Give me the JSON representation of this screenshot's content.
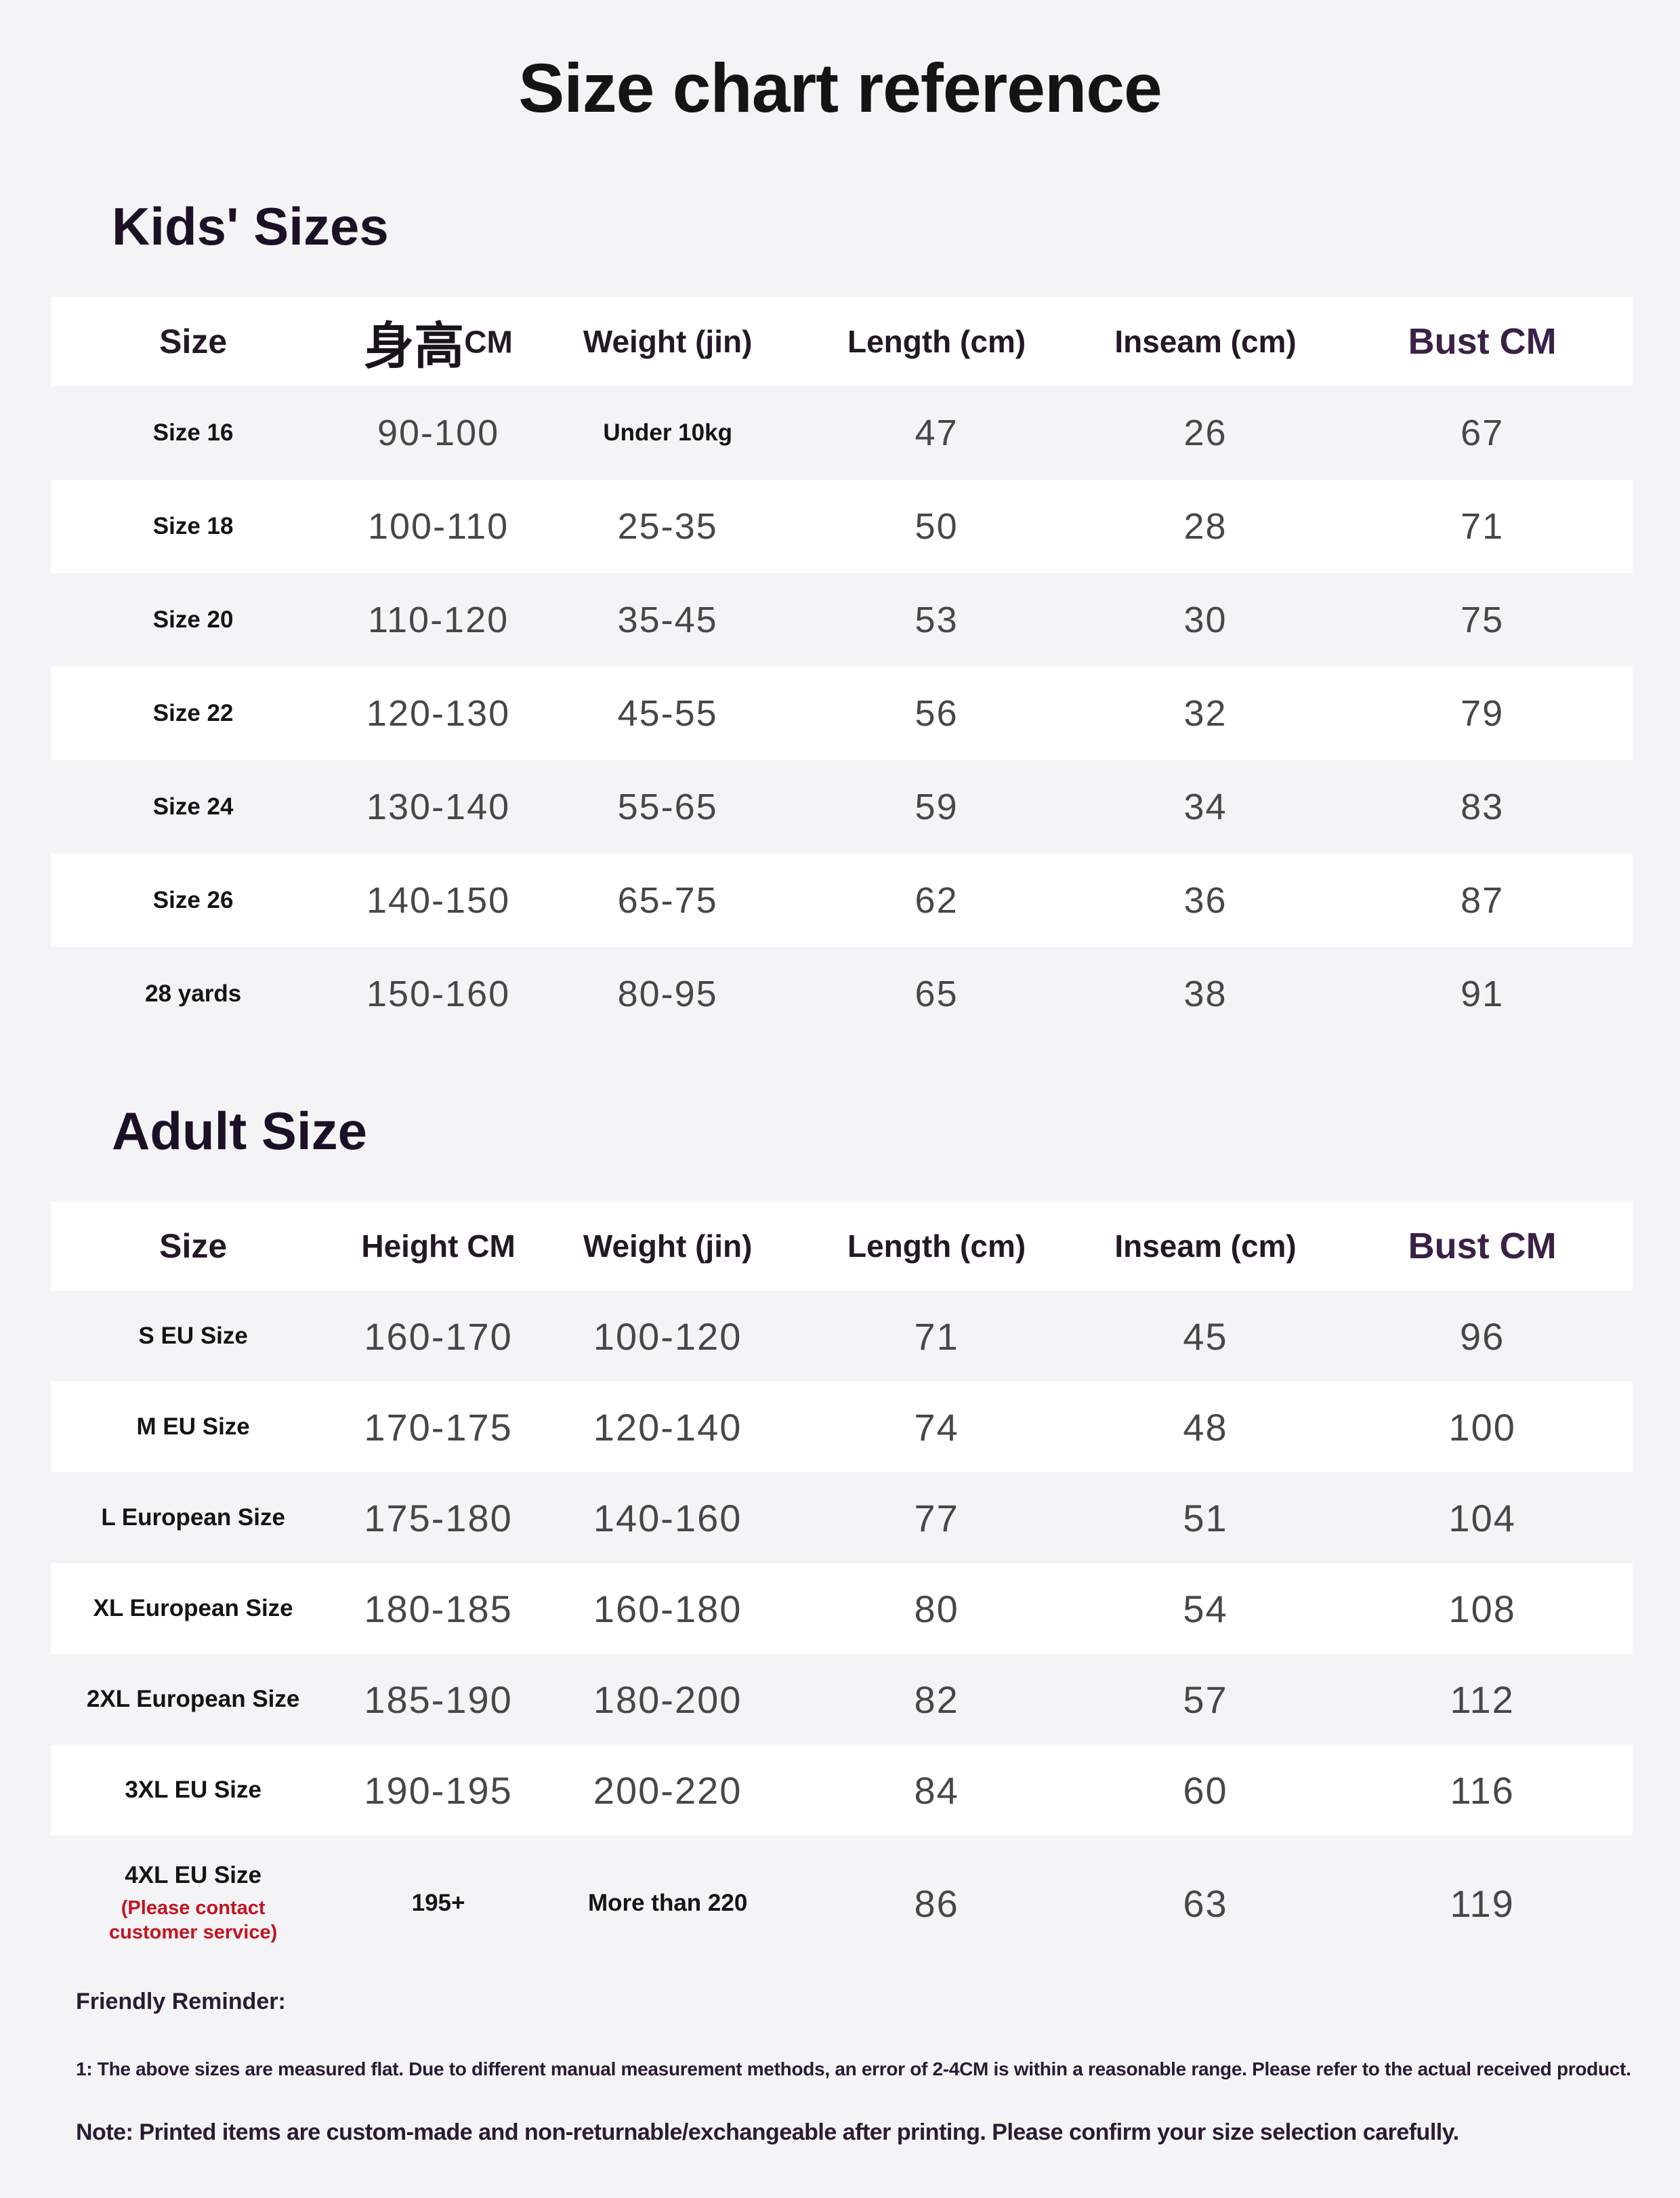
{
  "title": "Size chart reference",
  "kids_section": {
    "heading": "Kids' Sizes",
    "table": {
      "columns": {
        "size": "Size",
        "height_zh": "身高",
        "height_unit": "CM",
        "weight": "Weight (jin)",
        "length": "Length (cm)",
        "inseam": "Inseam (cm)",
        "bust": "Bust CM"
      },
      "rows": [
        {
          "size": "Size 16",
          "height": "90-100",
          "weight": "Under 10kg",
          "length": "47",
          "inseam": "26",
          "bust": "67"
        },
        {
          "size": "Size 18",
          "height": "100-110",
          "weight": "25-35",
          "length": "50",
          "inseam": "28",
          "bust": "71"
        },
        {
          "size": "Size 20",
          "height": "110-120",
          "weight": "35-45",
          "length": "53",
          "inseam": "30",
          "bust": "75"
        },
        {
          "size": "Size 22",
          "height": "120-130",
          "weight": "45-55",
          "length": "56",
          "inseam": "32",
          "bust": "79"
        },
        {
          "size": "Size 24",
          "height": "130-140",
          "weight": "55-65",
          "length": "59",
          "inseam": "34",
          "bust": "83"
        },
        {
          "size": "Size 26",
          "height": "140-150",
          "weight": "65-75",
          "length": "62",
          "inseam": "36",
          "bust": "87"
        },
        {
          "size": "28 yards",
          "height": "150-160",
          "weight": "80-95",
          "length": "65",
          "inseam": "38",
          "bust": "91"
        }
      ]
    }
  },
  "adult_section": {
    "heading": "Adult Size",
    "table": {
      "columns": {
        "size": "Size",
        "height": "Height CM",
        "weight": "Weight (jin)",
        "length": "Length (cm)",
        "inseam": "Inseam (cm)",
        "bust": "Bust CM"
      },
      "rows": [
        {
          "size": "S EU Size",
          "height": "160-170",
          "weight": "100-120",
          "length": "71",
          "inseam": "45",
          "bust": "96"
        },
        {
          "size": "M EU Size",
          "height": "170-175",
          "weight": "120-140",
          "length": "74",
          "inseam": "48",
          "bust": "100"
        },
        {
          "size": "L European Size",
          "height": "175-180",
          "weight": "140-160",
          "length": "77",
          "inseam": "51",
          "bust": "104"
        },
        {
          "size": "XL European Size",
          "height": "180-185",
          "weight": "160-180",
          "length": "80",
          "inseam": "54",
          "bust": "108"
        },
        {
          "size": "2XL European Size",
          "height": "185-190",
          "weight": "180-200",
          "length": "82",
          "inseam": "57",
          "bust": "112"
        },
        {
          "size": "3XL EU Size",
          "height": "190-195",
          "weight": "200-220",
          "length": "84",
          "inseam": "60",
          "bust": "116"
        },
        {
          "size": "4XL EU Size",
          "note": "(Please contact\ncustomer service)",
          "height": "195+",
          "weight": "More than 220",
          "length": "86",
          "inseam": "63",
          "bust": "119"
        }
      ]
    }
  },
  "footer": {
    "reminder_label": "Friendly Reminder:",
    "note_measurement": "1: The above sizes are measured flat. Due to different manual measurement methods, an error of 2-4CM is within a reasonable range. Please refer to the actual received product.",
    "note_printing": "Note: Printed items are custom-made and non-returnable/exchangeable after printing. Please confirm your size selection carefully."
  },
  "colors": {
    "page_bg": "#f4f3f5",
    "stripe_white": "#ffffff",
    "header_text": "#241826",
    "bust_header": "#3b2145",
    "heading_text": "#1c1026",
    "number_text": "#474747",
    "label_text": "#141414",
    "note_red": "#c41320",
    "footer_text": "#2a1b33"
  }
}
